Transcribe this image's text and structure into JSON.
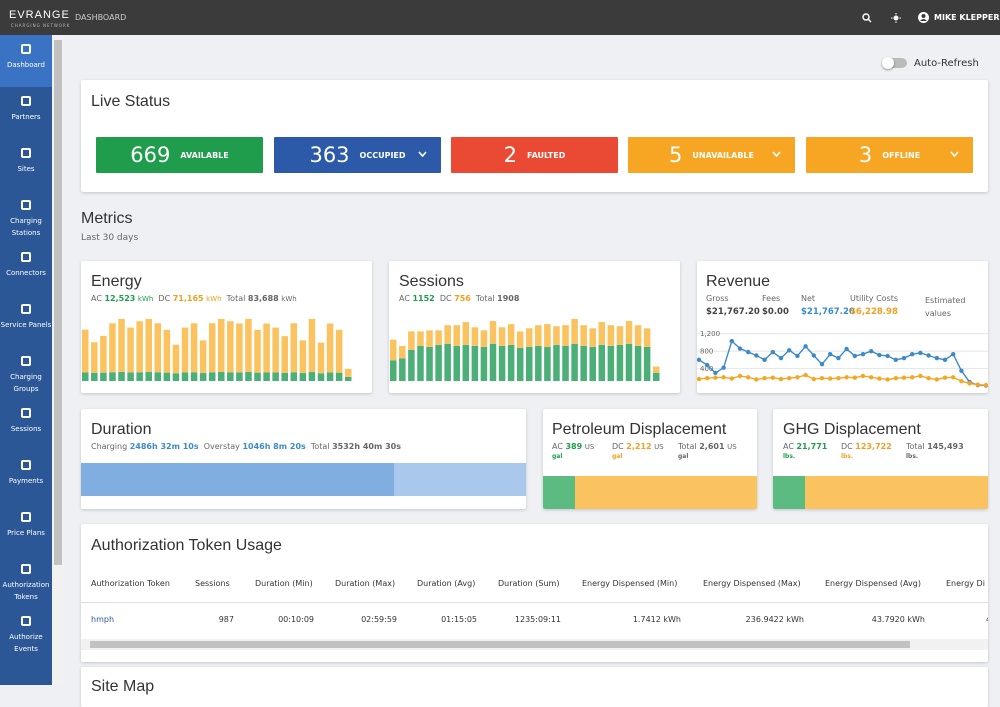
{
  "header": {
    "logo": "EVRANGE",
    "logo_sub": "CHARGING NETWORK",
    "page": "DASHBOARD",
    "user": "MIKE KLEPPER"
  },
  "sidebar": [
    "Dashboard",
    "Partners",
    "Sites",
    "Charging Stations",
    "Connectors",
    "Service Panels",
    "Charging Groups",
    "Sessions",
    "Payments",
    "Price Plans",
    "Authorization Tokens",
    "Authorize Events"
  ],
  "auto_refresh": "Auto-Refresh",
  "live_status": {
    "title": "Live Status",
    "tiles": [
      {
        "value": 669,
        "label": "AVAILABLE",
        "color": "#1f9d4c",
        "dropdown": false
      },
      {
        "value": 363,
        "label": "OCCUPIED",
        "color": "#2c5aa8",
        "dropdown": true
      },
      {
        "value": 2,
        "label": "FAULTED",
        "color": "#ea4a33",
        "dropdown": false
      },
      {
        "value": 5,
        "label": "UNAVAILABLE",
        "color": "#f6a623",
        "dropdown": true
      },
      {
        "value": 3,
        "label": "OFFLINE",
        "color": "#f6a623",
        "dropdown": true
      }
    ]
  },
  "metrics": {
    "title": "Metrics",
    "subtitle": "Last 30 days"
  },
  "energy": {
    "title": "Energy",
    "ac_label": "AC",
    "ac": {
      "value": 12523,
      "label": "12,523"
    },
    "dc_label": "DC",
    "dc": {
      "value": 71165,
      "label": "71,165"
    },
    "total_label": "Total",
    "total": {
      "value": 83688,
      "label": "83,688"
    },
    "unit": "kWh",
    "ac_color": "#4caf78",
    "dc_color": "#fbc35f",
    "ac_values": [
      420,
      400,
      410,
      430,
      440,
      420,
      430,
      440,
      430,
      410,
      380,
      420,
      430,
      390,
      430,
      440,
      430,
      420,
      440,
      410,
      420,
      420,
      400,
      430,
      390,
      440,
      380,
      420,
      410,
      200
    ],
    "dc_values": [
      2100,
      1500,
      1800,
      2400,
      2600,
      2200,
      2500,
      2600,
      2400,
      2100,
      1400,
      2200,
      2400,
      1600,
      2400,
      2600,
      2500,
      2400,
      2600,
      2100,
      2400,
      2200,
      1800,
      2400,
      1600,
      2600,
      1500,
      2400,
      2100,
      400
    ]
  },
  "sessions": {
    "title": "Sessions",
    "ac_label": "AC",
    "ac": 1152,
    "dc_label": "DC",
    "dc": 756,
    "total_label": "Total",
    "total": 1908,
    "ac_color": "#4caf78",
    "dc_color": "#fbc35f",
    "ac_values": [
      20,
      22,
      30,
      34,
      33,
      35,
      36,
      34,
      35,
      34,
      33,
      36,
      34,
      35,
      32,
      33,
      34,
      33,
      35,
      34,
      36,
      34,
      33,
      35,
      34,
      35,
      36,
      34,
      33,
      8
    ],
    "dc_values": [
      20,
      12,
      18,
      14,
      16,
      14,
      18,
      20,
      22,
      18,
      16,
      22,
      18,
      20,
      16,
      18,
      20,
      22,
      18,
      20,
      24,
      20,
      18,
      22,
      20,
      18,
      22,
      20,
      18,
      6
    ]
  },
  "revenue": {
    "title": "Revenue",
    "stats": [
      {
        "label": "Gross",
        "value": "$21,767.20"
      },
      {
        "label": "Fees",
        "value": "$0.00"
      },
      {
        "label": "Net",
        "value": "$21,767.20"
      },
      {
        "label": "Utility Costs",
        "value": "$6,228.98"
      },
      {
        "label": "Estimated values"
      }
    ],
    "ylim": [
      0,
      1400
    ],
    "yticks": [
      {
        "value": 400,
        "label": "400"
      },
      {
        "value": 800,
        "label": "800"
      },
      {
        "value": 1200,
        "label": "1,200"
      }
    ],
    "series": [
      {
        "color": "#3d8ac8",
        "values": [
          600,
          480,
          300,
          420,
          1030,
          860,
          780,
          700,
          600,
          780,
          640,
          820,
          690,
          910,
          700,
          500,
          730,
          640,
          850,
          690,
          730,
          800,
          710,
          690,
          600,
          640,
          730,
          760,
          700,
          640,
          600,
          730,
          350,
          90,
          20,
          10
        ]
      },
      {
        "color": "#f5a623",
        "values": [
          160,
          180,
          190,
          200,
          170,
          230,
          200,
          150,
          180,
          190,
          160,
          180,
          200,
          250,
          160,
          180,
          170,
          180,
          200,
          190,
          230,
          200,
          170,
          150,
          180,
          190,
          200,
          230,
          180,
          150,
          190,
          200,
          110,
          60,
          30,
          20
        ]
      }
    ]
  },
  "duration": {
    "title": "Duration",
    "charging_label": "Charging",
    "charging": {
      "value": 2486.54,
      "label": "2486h 32m 10s"
    },
    "overstay_label": "Overstay",
    "overstay": {
      "value": 1046.14,
      "label": "1046h 8m 20s"
    },
    "total_label": "Total",
    "total": "3532h 40m 30s",
    "charging_color": "#80aee0",
    "overstay_color": "#a9c8ec"
  },
  "petroleum": {
    "title": "Petroleum Displacement",
    "ac_label": "AC",
    "ac": 389,
    "dc_label": "DC",
    "dc": {
      "value": 2212,
      "label": "2,212"
    },
    "total_label": "Total",
    "total": "2,601",
    "unit": "US",
    "unit2": "gal",
    "ac_color": "#5cbb80",
    "dc_color": "#fbc35f"
  },
  "ghg": {
    "title": "GHG Displacement",
    "ac_label": "AC",
    "ac": {
      "value": 21771,
      "label": "21,771"
    },
    "dc_label": "DC",
    "dc": {
      "value": 123722,
      "label": "123,722"
    },
    "total_label": "Total",
    "total": "145,493",
    "unit2": "lbs.",
    "ac_color": "#5cbb80",
    "dc_color": "#fbc35f"
  },
  "tokens": {
    "title": "Authorization Token Usage",
    "columns": [
      "Authorization Token",
      "Sessions",
      "Duration (Min)",
      "Duration (Max)",
      "Duration (Avg)",
      "Duration (Sum)",
      "Energy Dispensed (Min)",
      "Energy Dispensed (Max)",
      "Energy Dispensed (Avg)",
      "Energy Di"
    ],
    "rows": [
      [
        "hmph",
        "987",
        "00:10:09",
        "02:59:59",
        "01:15:05",
        "1235:09:11",
        "1.7412 kWh",
        "236.9422 kWh",
        "43.7920 kWh",
        "4"
      ]
    ]
  },
  "site_map": {
    "title": "Site Map"
  }
}
